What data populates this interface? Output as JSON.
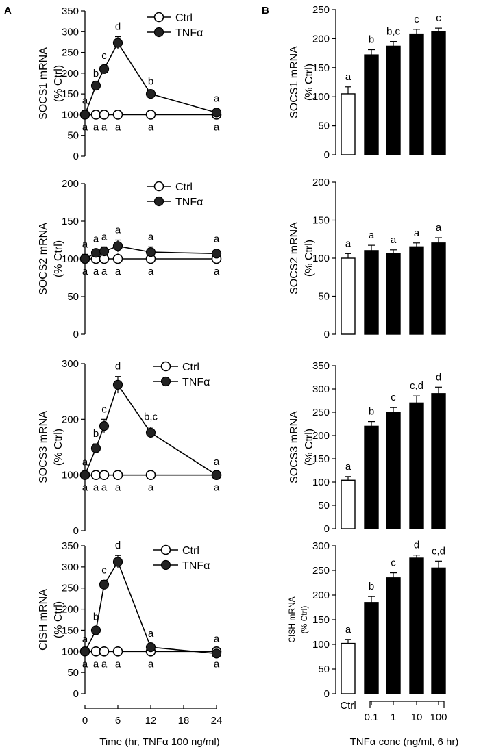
{
  "figure": {
    "panel_labels": [
      "A",
      "B"
    ],
    "left_xlabel": "Time (hr, TNFα 100 ng/ml)",
    "right_xlabel": "TNFα conc (ng/ml, 6 hr)",
    "left_xticks": [
      "0",
      "6",
      "12",
      "18",
      "24"
    ],
    "right_xticks": [
      "Ctrl",
      "0.1",
      "1",
      "10",
      "100"
    ],
    "percent_ctrl": "(% Ctrl)"
  },
  "chart_data": [
    {
      "id": "A-SOCS1",
      "type": "line",
      "ylabel": "SOCS1 mRNA",
      "ylim": [
        0,
        350
      ],
      "yticks": [
        0,
        50,
        100,
        150,
        200,
        250,
        300,
        350
      ],
      "x": [
        0,
        2,
        3.5,
        6,
        12,
        24
      ],
      "legend": [
        "Ctrl",
        "TNFα"
      ],
      "series": [
        {
          "name": "Ctrl",
          "values": [
            100,
            100,
            100,
            100,
            100,
            100
          ],
          "err": [
            0,
            0,
            0,
            0,
            0,
            0
          ],
          "labels": [
            "a",
            "a",
            "a",
            "a",
            "a",
            "a"
          ]
        },
        {
          "name": "TNFα",
          "values": [
            100,
            170,
            210,
            273,
            150,
            105
          ],
          "err": [
            10,
            5,
            8,
            15,
            6,
            10
          ],
          "labels": [
            "a",
            "b",
            "c",
            "d",
            "b",
            "a"
          ]
        }
      ]
    },
    {
      "id": "A-SOCS2",
      "type": "line",
      "ylabel": "SOCS2 mRNA",
      "ylim": [
        0,
        200
      ],
      "yticks": [
        0,
        50,
        100,
        150,
        200
      ],
      "x": [
        0,
        2,
        3.5,
        6,
        12,
        24
      ],
      "legend": [
        "Ctrl",
        "TNFα"
      ],
      "series": [
        {
          "name": "Ctrl",
          "values": [
            100,
            100,
            100,
            100,
            100,
            100
          ],
          "err": [
            0,
            0,
            0,
            7,
            0,
            6
          ],
          "labels": [
            "a",
            "a",
            "a",
            "a",
            "a",
            "a"
          ]
        },
        {
          "name": "TNFα",
          "values": [
            100,
            108,
            110,
            117,
            109,
            107
          ],
          "err": [
            6,
            5,
            6,
            8,
            7,
            6
          ],
          "labels": [
            "a",
            "a",
            "a",
            "a",
            "a",
            "a"
          ]
        }
      ]
    },
    {
      "id": "A-SOCS3",
      "type": "line",
      "ylabel": "SOCS3 mRNA",
      "ylim": [
        0,
        300
      ],
      "yticks": [
        0,
        100,
        200,
        300
      ],
      "x": [
        0,
        2,
        3.5,
        6,
        12,
        24
      ],
      "legend": [
        "Ctrl",
        "TNFα"
      ],
      "series": [
        {
          "name": "Ctrl",
          "values": [
            100,
            100,
            100,
            100,
            100,
            100
          ],
          "err": [
            0,
            0,
            0,
            0,
            0,
            0
          ],
          "labels": [
            "a",
            "a",
            "a",
            "a",
            "a",
            "a"
          ]
        },
        {
          "name": "TNFα",
          "values": [
            100,
            148,
            188,
            262,
            176,
            100
          ],
          "err": [
            5,
            8,
            12,
            15,
            10,
            6
          ],
          "labels": [
            "a",
            "b",
            "c",
            "d",
            "b,c",
            "a"
          ]
        }
      ]
    },
    {
      "id": "A-CISH",
      "type": "line",
      "ylabel": "CISH mRNA",
      "ylim": [
        0,
        350
      ],
      "yticks": [
        0,
        50,
        100,
        150,
        200,
        250,
        300,
        350
      ],
      "x": [
        0,
        2,
        3.5,
        6,
        12,
        24
      ],
      "legend": [
        "Ctrl",
        "TNFα"
      ],
      "series": [
        {
          "name": "Ctrl",
          "values": [
            100,
            100,
            100,
            100,
            100,
            100
          ],
          "err": [
            0,
            0,
            0,
            0,
            0,
            0
          ],
          "labels": [
            "a",
            "a",
            "a",
            "a",
            "a",
            "a"
          ]
        },
        {
          "name": "TNFα",
          "values": [
            100,
            150,
            258,
            312,
            110,
            95
          ],
          "err": [
            5,
            8,
            10,
            15,
            8,
            6
          ],
          "labels": [
            "a",
            "b",
            "c",
            "d",
            "a",
            "a"
          ]
        }
      ]
    },
    {
      "id": "B-SOCS1",
      "type": "bar",
      "ylabel": "SOCS1 mRNA",
      "ylim": [
        0,
        250
      ],
      "yticks": [
        0,
        50,
        100,
        150,
        200,
        250
      ],
      "categories": [
        "Ctrl",
        "0.1",
        "1",
        "10",
        "100"
      ],
      "values": [
        105,
        172,
        187,
        208,
        212
      ],
      "err": [
        12,
        9,
        8,
        8,
        6
      ],
      "labels": [
        "a",
        "b",
        "b,c",
        "c",
        "c"
      ]
    },
    {
      "id": "B-SOCS2",
      "type": "bar",
      "ylabel": "SOCS2 mRNA",
      "ylim": [
        0,
        200
      ],
      "yticks": [
        0,
        50,
        100,
        150,
        200
      ],
      "categories": [
        "Ctrl",
        "0.1",
        "1",
        "10",
        "100"
      ],
      "values": [
        100,
        110,
        106,
        115,
        120
      ],
      "err": [
        6,
        7,
        5,
        5,
        7
      ],
      "labels": [
        "a",
        "a",
        "a",
        "a",
        "a"
      ]
    },
    {
      "id": "B-SOCS3",
      "type": "bar",
      "ylabel": "SOCS3 mRNA",
      "ylim": [
        0,
        350
      ],
      "yticks": [
        0,
        50,
        100,
        150,
        200,
        250,
        300,
        350
      ],
      "categories": [
        "Ctrl",
        "0.1",
        "1",
        "10",
        "100"
      ],
      "values": [
        104,
        220,
        250,
        270,
        290
      ],
      "err": [
        8,
        10,
        10,
        15,
        14
      ],
      "labels": [
        "a",
        "b",
        "c",
        "c,d",
        "d"
      ]
    },
    {
      "id": "B-CISH",
      "type": "bar",
      "ylabel": "CISH mRNA",
      "ylim": [
        0,
        300
      ],
      "yticks": [
        0,
        50,
        100,
        150,
        200,
        250,
        300
      ],
      "categories": [
        "Ctrl",
        "0.1",
        "1",
        "10",
        "100"
      ],
      "values": [
        102,
        185,
        235,
        275,
        255
      ],
      "err": [
        8,
        12,
        10,
        6,
        14
      ],
      "labels": [
        "a",
        "b",
        "c",
        "d",
        "c,d"
      ]
    }
  ]
}
